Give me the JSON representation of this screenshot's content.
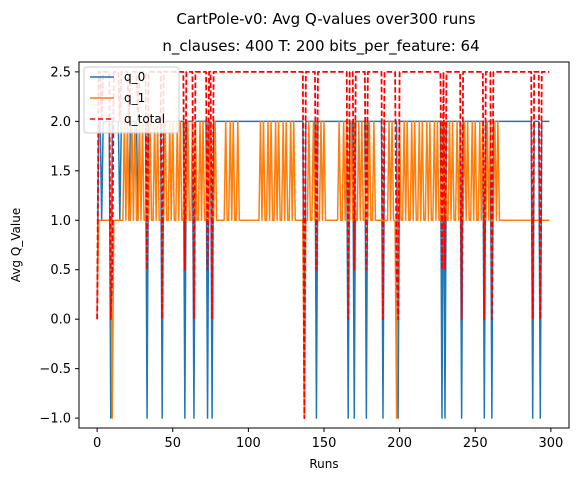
{
  "chart_data": {
    "type": "line",
    "suptitle": "CartPole-v0: Avg Q-values over300 runs",
    "title": "n_clauses: 400 T: 200 bits_per_feature: 64",
    "xlabel": "Runs",
    "ylabel": "Avg Q_Value",
    "xlim": [
      -12,
      312
    ],
    "ylim": [
      -1.1,
      2.6
    ],
    "xticks": [
      0,
      50,
      100,
      150,
      200,
      250,
      300
    ],
    "yticks": [
      -1.0,
      -0.5,
      0.0,
      0.5,
      1.0,
      1.5,
      2.0,
      2.5
    ],
    "ytick_labels": [
      "−1.0",
      "−0.5",
      "0.0",
      "0.5",
      "1.0",
      "1.5",
      "2.0",
      "2.5"
    ],
    "legend": {
      "placement": "upper-left"
    },
    "series": [
      {
        "name": "q_0",
        "color": "#1f77b4",
        "style": "solid",
        "base": 2.0,
        "start": 0.0,
        "drops": [
          9,
          33,
          43,
          58,
          64,
          73,
          76,
          137,
          145,
          166,
          170,
          178,
          189,
          199,
          228,
          230,
          241,
          256,
          261,
          288,
          293
        ]
      },
      {
        "name": "q_1",
        "color": "#ff7f0e",
        "style": "solid",
        "base": 1.0,
        "start": 0.0,
        "spikes": [
          18,
          19,
          20,
          21,
          22,
          23,
          24,
          25,
          26,
          27,
          28,
          29,
          30,
          31,
          32,
          33,
          34,
          35,
          36,
          37,
          38,
          39,
          40,
          41,
          42,
          44,
          45,
          46,
          47,
          48,
          49,
          50,
          51,
          52,
          53,
          54,
          55,
          56,
          57,
          58,
          59,
          60,
          61,
          62,
          63,
          64,
          65,
          66,
          67,
          68,
          69,
          70,
          71,
          72,
          73,
          74,
          75,
          76,
          77,
          78,
          79,
          85,
          86,
          87,
          88,
          89,
          90,
          91,
          92,
          93,
          94,
          106,
          107,
          108,
          109,
          110,
          111,
          112,
          113,
          114,
          115,
          116,
          117,
          118,
          119,
          120,
          121,
          122,
          123,
          124,
          125,
          126,
          127,
          128,
          129,
          130,
          131,
          132,
          140,
          141,
          142,
          143,
          144,
          145,
          146,
          147,
          148,
          149,
          150,
          151,
          160,
          161,
          162,
          163,
          164,
          165,
          166,
          167,
          168,
          169,
          170,
          171,
          172,
          173,
          174,
          175,
          176,
          177,
          178,
          179,
          180,
          181,
          182,
          183,
          193,
          194,
          195,
          196,
          197,
          198,
          199,
          200,
          201,
          202,
          203,
          204,
          205,
          206,
          207,
          208,
          209,
          210,
          211,
          212,
          213,
          214,
          215,
          216,
          217,
          218,
          219,
          220,
          221,
          222,
          223,
          224,
          225,
          226,
          227,
          228,
          229,
          230,
          231,
          232,
          233,
          234,
          235,
          236,
          237,
          238,
          239,
          240,
          241,
          242,
          243,
          244,
          245,
          246,
          247,
          248,
          249,
          250,
          251,
          252,
          253,
          254,
          255,
          256,
          257,
          258,
          259,
          260,
          261,
          262,
          263,
          264,
          265
        ],
        "drops": [
          10,
          137,
          198
        ]
      },
      {
        "name": "q_total",
        "color": "#ff0000",
        "style": "dashed",
        "start": 0.0,
        "description": "sum q_0 + q_1, oscillating between 0.5 and 2.5 with dips to -1.0"
      }
    ]
  }
}
